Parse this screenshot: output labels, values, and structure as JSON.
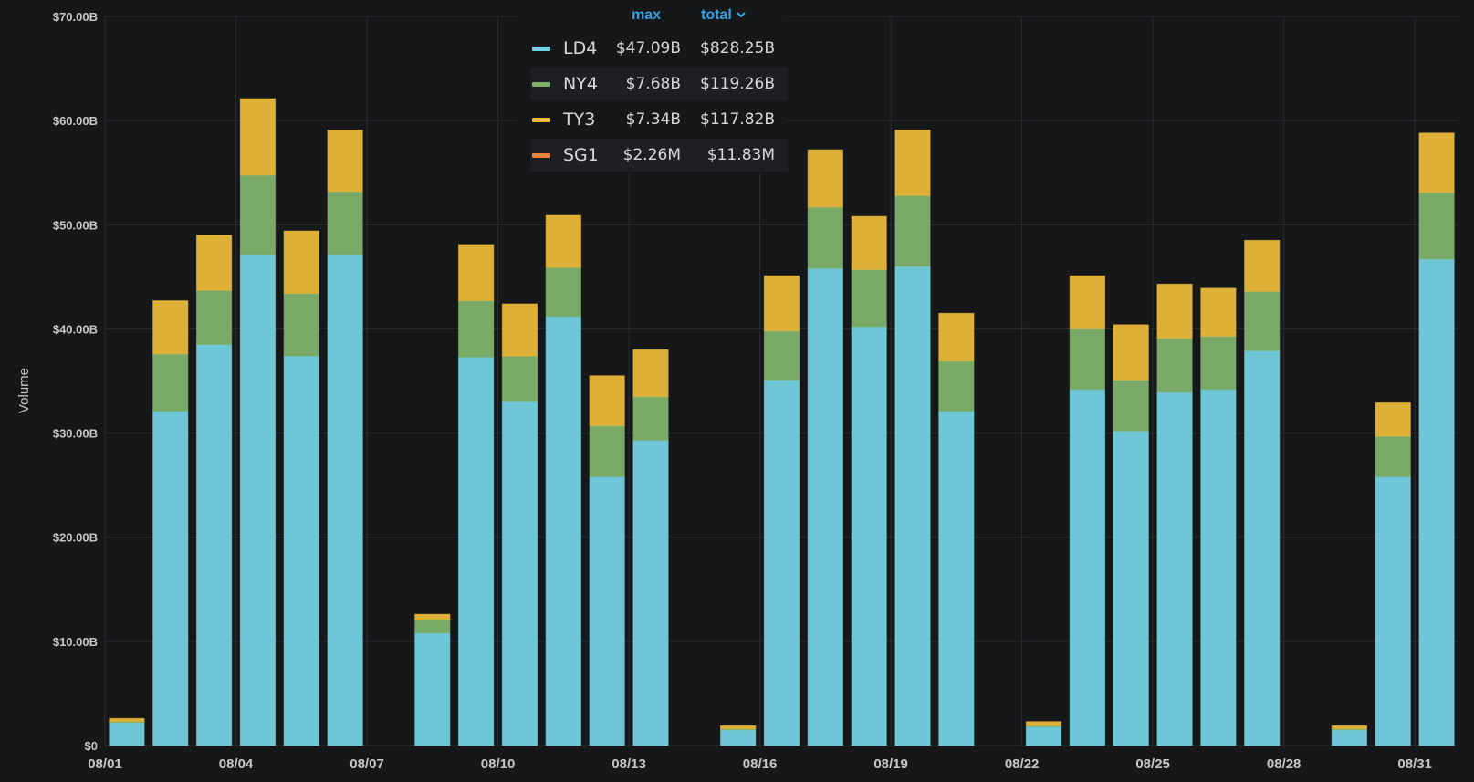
{
  "chart_data": {
    "type": "bar",
    "stacked": true,
    "ylabel": "Volume",
    "y_unit": "$ billions",
    "ylim": [
      0,
      70
    ],
    "y_ticks": [
      "$0",
      "$10.00B",
      "$20.00B",
      "$30.00B",
      "$40.00B",
      "$50.00B",
      "$60.00B",
      "$70.00B"
    ],
    "x_ticks": [
      "08/01",
      "08/04",
      "08/07",
      "08/10",
      "08/13",
      "08/16",
      "08/19",
      "08/22",
      "08/25",
      "08/28",
      "08/31"
    ],
    "grid": true,
    "legend_placement": "top-center",
    "categories": [
      "08/01",
      "08/02",
      "08/03",
      "08/04",
      "08/05",
      "08/06",
      "08/07",
      "08/08",
      "08/09",
      "08/10",
      "08/11",
      "08/12",
      "08/13",
      "08/14",
      "08/15",
      "08/16",
      "08/17",
      "08/18",
      "08/19",
      "08/20",
      "08/21",
      "08/22",
      "08/23",
      "08/24",
      "08/25",
      "08/26",
      "08/27",
      "08/28",
      "08/29",
      "08/30",
      "08/31"
    ],
    "series": [
      {
        "name": "LD4",
        "color": "#73d0e2",
        "values": [
          2.2,
          32.1,
          38.5,
          47.09,
          37.4,
          47.09,
          0,
          10.8,
          37.3,
          33.0,
          41.2,
          25.8,
          29.3,
          0,
          1.5,
          35.1,
          45.8,
          40.2,
          46.0,
          32.1,
          0,
          1.8,
          34.2,
          30.2,
          33.9,
          34.2,
          37.9,
          0,
          1.5,
          25.8,
          46.7
        ],
        "max": "$47.09B",
        "total": "$828.25B"
      },
      {
        "name": "NY4",
        "color": "#7eb26d",
        "values": [
          0.1,
          5.5,
          5.2,
          7.68,
          6.0,
          6.1,
          0,
          1.3,
          5.4,
          4.4,
          4.7,
          4.9,
          4.2,
          0,
          0.1,
          4.7,
          5.9,
          5.5,
          6.8,
          4.8,
          0,
          0.1,
          5.8,
          4.9,
          5.2,
          5.1,
          5.7,
          0,
          0.1,
          3.9,
          6.4
        ],
        "max": "$7.68B",
        "total": "$119.26B"
      },
      {
        "name": "TY3",
        "color": "#eab839",
        "values": [
          0.3,
          5.1,
          5.3,
          7.34,
          6.0,
          5.9,
          0,
          0.5,
          5.4,
          5.0,
          5.0,
          4.8,
          4.5,
          0,
          0.3,
          5.3,
          5.5,
          5.1,
          6.3,
          4.6,
          0,
          0.4,
          5.1,
          5.3,
          5.2,
          4.6,
          4.9,
          0,
          0.3,
          3.2,
          5.7
        ],
        "max": "$7.34B",
        "total": "$117.82B"
      },
      {
        "name": "SG1",
        "color": "#ef843c",
        "values": [
          0,
          0,
          0,
          0,
          0,
          0,
          0,
          0,
          0,
          0,
          0,
          0,
          0,
          0,
          0,
          0,
          0,
          0,
          0,
          0,
          0,
          0,
          0,
          0,
          0,
          0,
          0,
          0,
          0,
          0,
          0
        ],
        "max": "$2.26M",
        "total": "$11.83M"
      }
    ]
  },
  "legend": {
    "max_header": "max",
    "total_header": "total",
    "sort_icon": "chevron-down-icon"
  }
}
